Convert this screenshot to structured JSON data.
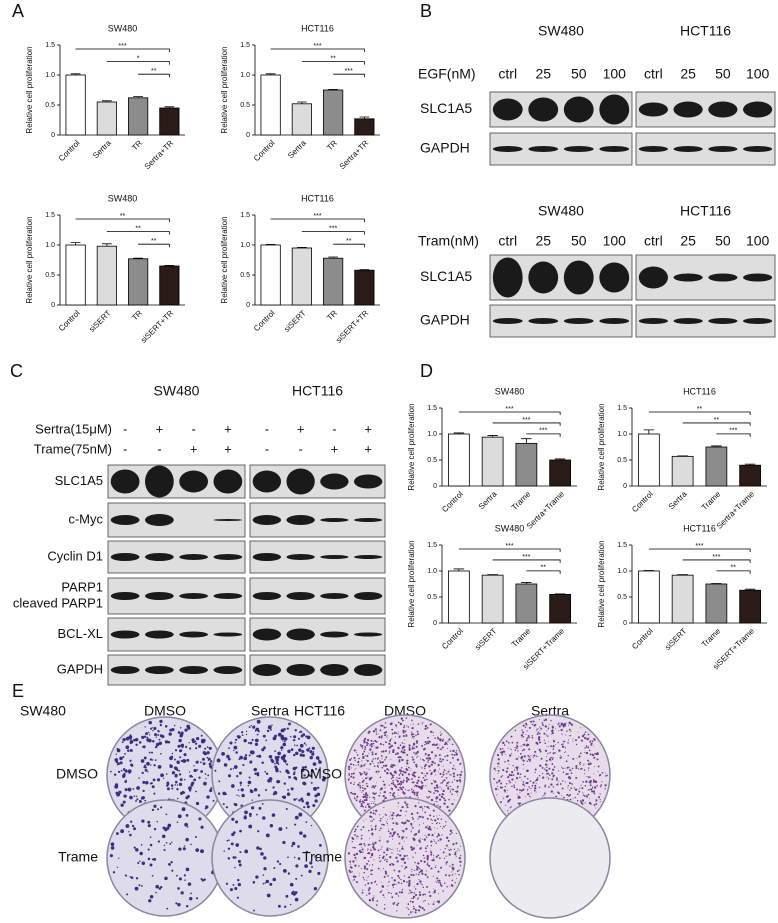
{
  "panel_labels": [
    "A",
    "B",
    "C",
    "D",
    "E"
  ],
  "chart_data": [
    {
      "type": "bar",
      "title": "SW480",
      "y_label": "Relative cell proliferation",
      "categories": [
        "Control",
        "Sertra",
        "TR",
        "Sertra+TR"
      ],
      "values": [
        1.0,
        0.55,
        0.62,
        0.45
      ],
      "errors": [
        0.02,
        0.02,
        0.02,
        0.02
      ],
      "colors": [
        "#ffffff",
        "#dcdcdc",
        "#8c8c8c",
        "#2b1b18"
      ],
      "ylim": [
        0,
        1.5
      ],
      "yticks": [
        0,
        0.5,
        {
          "value": 1,
          "label": "1.0"
        },
        1.5
      ],
      "annotations": [
        "***",
        "*",
        "**"
      ]
    },
    {
      "type": "bar",
      "title": "HCT116",
      "y_label": "Relative cell proliferation",
      "categories": [
        "Control",
        "Sertra",
        "TR",
        "Sertra+TR"
      ],
      "values": [
        1.0,
        0.52,
        0.75,
        0.27
      ],
      "errors": [
        0.02,
        0.03,
        0.01,
        0.03
      ],
      "colors": [
        "#ffffff",
        "#dcdcdc",
        "#8c8c8c",
        "#2b1b18"
      ],
      "ylim": [
        0,
        1.5
      ],
      "yticks": [
        0,
        0.5,
        {
          "value": 1,
          "label": "1.0"
        },
        1.5
      ],
      "annotations": [
        "***",
        "**",
        "***"
      ]
    },
    {
      "type": "bar",
      "title": "SW480",
      "y_label": "Relative cell proliferation",
      "categories": [
        "Control",
        "siSERT",
        "TR",
        "siSERT+TR"
      ],
      "values": [
        1.0,
        0.98,
        0.77,
        0.65
      ],
      "errors": [
        0.04,
        0.04,
        0.01,
        0.01
      ],
      "colors": [
        "#ffffff",
        "#dcdcdc",
        "#8c8c8c",
        "#2b1b18"
      ],
      "ylim": [
        0,
        1.5
      ],
      "yticks": [
        0,
        0.5,
        {
          "value": 1,
          "label": "1.0"
        },
        1.5
      ],
      "annotations": [
        "**",
        "**",
        "**"
      ]
    },
    {
      "type": "bar",
      "title": "HCT116",
      "y_label": "Relative cell proliferation",
      "categories": [
        "Control",
        "siSERT",
        "TR",
        "siSERT+TR"
      ],
      "values": [
        1.0,
        0.95,
        0.78,
        0.58
      ],
      "errors": [
        0.01,
        0.01,
        0.02,
        0.01
      ],
      "colors": [
        "#ffffff",
        "#dcdcdc",
        "#8c8c8c",
        "#2b1b18"
      ],
      "ylim": [
        0,
        1.5
      ],
      "yticks": [
        0,
        0.5,
        {
          "value": 1,
          "label": "1.0"
        },
        1.5
      ],
      "annotations": [
        "***",
        "***",
        "**"
      ]
    },
    {
      "type": "bar",
      "title": "SW480",
      "y_label": "Relative cell proliferation",
      "categories": [
        "Control",
        "Sertra",
        "Trame",
        "Sertra+Trame"
      ],
      "values": [
        1.0,
        0.94,
        0.82,
        0.5
      ],
      "errors": [
        0.02,
        0.03,
        0.09,
        0.02
      ],
      "colors": [
        "#ffffff",
        "#dcdcdc",
        "#8c8c8c",
        "#2b1b18"
      ],
      "ylim": [
        0,
        1.5
      ],
      "yticks": [
        0,
        0.5,
        {
          "value": 1,
          "label": "1.0"
        },
        1.5
      ],
      "annotations": [
        "***",
        "***",
        "***"
      ]
    },
    {
      "type": "bar",
      "title": "HCT116",
      "y_label": "Relative cell proliferation",
      "categories": [
        "Control",
        "Sertra",
        "Trame",
        "Sertra+Trame"
      ],
      "values": [
        1.0,
        0.57,
        0.75,
        0.4
      ],
      "errors": [
        0.08,
        0.01,
        0.02,
        0.02
      ],
      "colors": [
        "#ffffff",
        "#dcdcdc",
        "#8c8c8c",
        "#2b1b18"
      ],
      "ylim": [
        0,
        1.5
      ],
      "yticks": [
        0,
        0.5,
        {
          "value": 1,
          "label": "1.0"
        },
        1.5
      ],
      "annotations": [
        "**",
        "**",
        "***"
      ]
    },
    {
      "type": "bar",
      "title": "SW480",
      "y_label": "Relative cell proliferation",
      "categories": [
        "Control",
        "siSERT",
        "Trame",
        "siSERT+Trame"
      ],
      "values": [
        1.0,
        0.92,
        0.75,
        0.55
      ],
      "errors": [
        0.04,
        0.01,
        0.03,
        0.01
      ],
      "colors": [
        "#ffffff",
        "#dcdcdc",
        "#8c8c8c",
        "#2b1b18"
      ],
      "ylim": [
        0,
        1.5
      ],
      "yticks": [
        0,
        0.5,
        {
          "value": 1,
          "label": "1.0"
        },
        1.5
      ],
      "annotations": [
        "***",
        "***",
        "**"
      ]
    },
    {
      "type": "bar",
      "title": "HCT116",
      "y_label": "Relative cell proliferation",
      "categories": [
        "Control",
        "siSERT",
        "Trame",
        "siSERT+Trame"
      ],
      "values": [
        1.0,
        0.92,
        0.75,
        0.63
      ],
      "errors": [
        0.01,
        0.01,
        0.01,
        0.02
      ],
      "colors": [
        "#ffffff",
        "#dcdcdc",
        "#8c8c8c",
        "#2b1b18"
      ],
      "ylim": [
        0,
        1.5
      ],
      "yticks": [
        0,
        0.5,
        {
          "value": 1,
          "label": "1.0"
        },
        1.5
      ],
      "annotations": [
        "***",
        "***",
        "**"
      ]
    }
  ],
  "panel_b": {
    "sections": [
      {
        "cells": [
          "SW480",
          "HCT116"
        ],
        "treatment": "EGF(nM)",
        "lanes": [
          "ctrl",
          "25",
          "50",
          "100"
        ],
        "proteins": [
          "SLC1A5",
          "GAPDH"
        ]
      },
      {
        "cells": [
          "SW480",
          "HCT116"
        ],
        "treatment": "Tram(nM)",
        "lanes": [
          "ctrl",
          "25",
          "50",
          "100"
        ],
        "proteins": [
          "SLC1A5",
          "GAPDH"
        ]
      }
    ]
  },
  "panel_c": {
    "cells": [
      "SW480",
      "HCT116"
    ],
    "treatments": [
      {
        "name": "Sertra(15μM)",
        "signs": [
          "-",
          "+",
          "-",
          "+"
        ]
      },
      {
        "name": "Trame(75nM)",
        "signs": [
          "-",
          "-",
          "+",
          "+"
        ]
      }
    ],
    "proteins": [
      [
        "SLC1A5"
      ],
      [
        "c-Myc"
      ],
      [
        "Cyclin D1"
      ],
      [
        "PARP1",
        "cleaved PARP1"
      ],
      [
        "BCL-XL"
      ],
      [
        "GAPDH"
      ]
    ]
  },
  "panel_e": {
    "groups": [
      {
        "cell": "SW480",
        "columns": [
          "DMSO",
          "Sertra"
        ],
        "rows": [
          "DMSO",
          "Trame"
        ]
      },
      {
        "cell": "HCT116",
        "columns": [
          "DMSO",
          "Sertra"
        ],
        "rows": [
          "DMSO",
          "Trame"
        ]
      }
    ]
  }
}
